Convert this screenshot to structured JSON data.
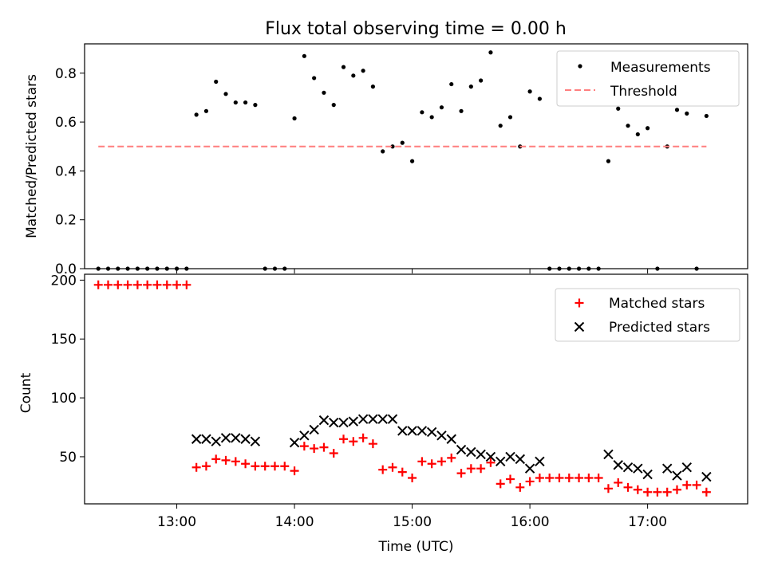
{
  "colors": {
    "measurement": "#000000",
    "threshold": "#ff7f7f",
    "matched": "#ff0000",
    "predicted": "#000000"
  },
  "chart_data": [
    {
      "type": "scatter",
      "title": "Flux total observing time = 0.00 h",
      "xlabel": "",
      "ylabel": "Matched/Predicted stars",
      "xlim": [
        "12:13",
        "17:51"
      ],
      "ylim": [
        0,
        0.92
      ],
      "yticks": [
        0.0,
        0.2,
        0.4,
        0.6,
        0.8
      ],
      "ytick_labels": [
        "0.0",
        "0.2",
        "0.4",
        "0.6",
        "0.8"
      ],
      "xticks": [
        "13:00",
        "14:00",
        "15:00",
        "16:00",
        "17:00"
      ],
      "xtick_labels": [
        "",
        "",
        "",
        "",
        ""
      ],
      "legend_position": "top-right",
      "legend": [
        "Measurements",
        "Threshold"
      ],
      "series": [
        {
          "name": "Measurements",
          "kind": "points",
          "points": [
            [
              "12:20",
              0
            ],
            [
              "12:25",
              0
            ],
            [
              "12:30",
              0
            ],
            [
              "12:35",
              0
            ],
            [
              "12:40",
              0
            ],
            [
              "12:45",
              0
            ],
            [
              "12:50",
              0
            ],
            [
              "12:55",
              0
            ],
            [
              "13:00",
              0
            ],
            [
              "13:05",
              0
            ],
            [
              "13:10",
              0.63
            ],
            [
              "13:15",
              0.645
            ],
            [
              "13:20",
              0.765
            ],
            [
              "13:25",
              0.715
            ],
            [
              "13:30",
              0.68
            ],
            [
              "13:35",
              0.68
            ],
            [
              "13:40",
              0.67
            ],
            [
              "13:45",
              0
            ],
            [
              "13:50",
              0
            ],
            [
              "13:55",
              0
            ],
            [
              "14:00",
              0.615
            ],
            [
              "14:05",
              0.87
            ],
            [
              "14:10",
              0.78
            ],
            [
              "14:15",
              0.72
            ],
            [
              "14:20",
              0.67
            ],
            [
              "14:25",
              0.825
            ],
            [
              "14:30",
              0.79
            ],
            [
              "14:35",
              0.81
            ],
            [
              "14:40",
              0.745
            ],
            [
              "14:45",
              0.48
            ],
            [
              "14:50",
              0.5
            ],
            [
              "14:55",
              0.515
            ],
            [
              "15:00",
              0.44
            ],
            [
              "15:05",
              0.64
            ],
            [
              "15:10",
              0.62
            ],
            [
              "15:15",
              0.66
            ],
            [
              "15:20",
              0.755
            ],
            [
              "15:25",
              0.645
            ],
            [
              "15:30",
              0.745
            ],
            [
              "15:35",
              0.77
            ],
            [
              "15:40",
              0.885
            ],
            [
              "15:45",
              0.585
            ],
            [
              "15:50",
              0.62
            ],
            [
              "15:55",
              0.5
            ],
            [
              "16:00",
              0.725
            ],
            [
              "16:05",
              0.695
            ],
            [
              "16:10",
              0
            ],
            [
              "16:15",
              0
            ],
            [
              "16:20",
              0
            ],
            [
              "16:25",
              0
            ],
            [
              "16:30",
              0
            ],
            [
              "16:35",
              0
            ],
            [
              "16:40",
              0.44
            ],
            [
              "16:45",
              0.655
            ],
            [
              "16:50",
              0.585
            ],
            [
              "16:55",
              0.55
            ],
            [
              "17:00",
              0.575
            ],
            [
              "17:05",
              0
            ],
            [
              "17:10",
              0.5
            ],
            [
              "17:15",
              0.65
            ],
            [
              "17:20",
              0.635
            ],
            [
              "17:25",
              0
            ],
            [
              "17:30",
              0.625
            ]
          ]
        },
        {
          "name": "Threshold",
          "kind": "dashed-line",
          "points": [
            [
              "12:20",
              0.5
            ],
            [
              "17:30",
              0.5
            ]
          ]
        }
      ]
    },
    {
      "type": "scatter",
      "title": "",
      "xlabel": "Time (UTC)",
      "ylabel": "Count",
      "xlim": [
        "12:13",
        "17:51"
      ],
      "ylim": [
        10,
        205
      ],
      "yticks": [
        50,
        100,
        150,
        200
      ],
      "ytick_labels": [
        "50",
        "100",
        "150",
        "200"
      ],
      "xticks": [
        "13:00",
        "14:00",
        "15:00",
        "16:00",
        "17:00"
      ],
      "xtick_labels": [
        "13:00",
        "14:00",
        "15:00",
        "16:00",
        "17:00"
      ],
      "legend_position": "top-right",
      "legend": [
        "Matched stars",
        "Predicted stars"
      ],
      "series": [
        {
          "name": "Matched stars",
          "kind": "plus",
          "points": [
            [
              "12:20",
              196
            ],
            [
              "12:25",
              196
            ],
            [
              "12:30",
              196
            ],
            [
              "12:35",
              196
            ],
            [
              "12:40",
              196
            ],
            [
              "12:45",
              196
            ],
            [
              "12:50",
              196
            ],
            [
              "12:55",
              196
            ],
            [
              "13:00",
              196
            ],
            [
              "13:05",
              196
            ],
            [
              "13:10",
              41
            ],
            [
              "13:15",
              42
            ],
            [
              "13:20",
              48
            ],
            [
              "13:25",
              47
            ],
            [
              "13:30",
              46
            ],
            [
              "13:35",
              44
            ],
            [
              "13:40",
              42
            ],
            [
              "13:45",
              42
            ],
            [
              "13:50",
              42
            ],
            [
              "13:55",
              42
            ],
            [
              "14:00",
              38
            ],
            [
              "14:05",
              59
            ],
            [
              "14:10",
              57
            ],
            [
              "14:15",
              58
            ],
            [
              "14:20",
              53
            ],
            [
              "14:25",
              65
            ],
            [
              "14:30",
              63
            ],
            [
              "14:35",
              66
            ],
            [
              "14:40",
              61
            ],
            [
              "14:45",
              39
            ],
            [
              "14:50",
              41
            ],
            [
              "14:55",
              37
            ],
            [
              "15:00",
              32
            ],
            [
              "15:05",
              46
            ],
            [
              "15:10",
              44
            ],
            [
              "15:15",
              46
            ],
            [
              "15:20",
              49
            ],
            [
              "15:25",
              36
            ],
            [
              "15:30",
              40
            ],
            [
              "15:35",
              40
            ],
            [
              "15:40",
              45
            ],
            [
              "15:45",
              27
            ],
            [
              "15:50",
              31
            ],
            [
              "15:55",
              24
            ],
            [
              "16:00",
              29
            ],
            [
              "16:05",
              32
            ],
            [
              "16:10",
              32
            ],
            [
              "16:15",
              32
            ],
            [
              "16:20",
              32
            ],
            [
              "16:25",
              32
            ],
            [
              "16:30",
              32
            ],
            [
              "16:35",
              32
            ],
            [
              "16:40",
              23
            ],
            [
              "16:45",
              28
            ],
            [
              "16:50",
              24
            ],
            [
              "16:55",
              22
            ],
            [
              "17:00",
              20
            ],
            [
              "17:05",
              20
            ],
            [
              "17:10",
              20
            ],
            [
              "17:15",
              22
            ],
            [
              "17:20",
              26
            ],
            [
              "17:25",
              26
            ],
            [
              "17:30",
              20
            ]
          ]
        },
        {
          "name": "Predicted stars",
          "kind": "x",
          "points": [
            [
              "13:10",
              65
            ],
            [
              "13:15",
              65
            ],
            [
              "13:20",
              63
            ],
            [
              "13:25",
              66
            ],
            [
              "13:30",
              66
            ],
            [
              "13:35",
              65
            ],
            [
              "13:40",
              63
            ],
            [
              "14:00",
              62
            ],
            [
              "14:05",
              68
            ],
            [
              "14:10",
              73
            ],
            [
              "14:15",
              81
            ],
            [
              "14:20",
              79
            ],
            [
              "14:25",
              79
            ],
            [
              "14:30",
              80
            ],
            [
              "14:35",
              82
            ],
            [
              "14:40",
              82
            ],
            [
              "14:45",
              82
            ],
            [
              "14:50",
              82
            ],
            [
              "14:55",
              72
            ],
            [
              "15:00",
              72
            ],
            [
              "15:05",
              72
            ],
            [
              "15:10",
              71
            ],
            [
              "15:15",
              68
            ],
            [
              "15:20",
              65
            ],
            [
              "15:25",
              56
            ],
            [
              "15:30",
              54
            ],
            [
              "15:35",
              52
            ],
            [
              "15:40",
              50
            ],
            [
              "15:45",
              46
            ],
            [
              "15:50",
              50
            ],
            [
              "15:55",
              48
            ],
            [
              "16:00",
              40
            ],
            [
              "16:05",
              46
            ],
            [
              "16:40",
              52
            ],
            [
              "16:45",
              43
            ],
            [
              "16:50",
              41
            ],
            [
              "16:55",
              40
            ],
            [
              "17:00",
              35
            ],
            [
              "17:10",
              40
            ],
            [
              "17:15",
              34
            ],
            [
              "17:20",
              41
            ],
            [
              "17:30",
              33
            ]
          ]
        }
      ]
    }
  ]
}
